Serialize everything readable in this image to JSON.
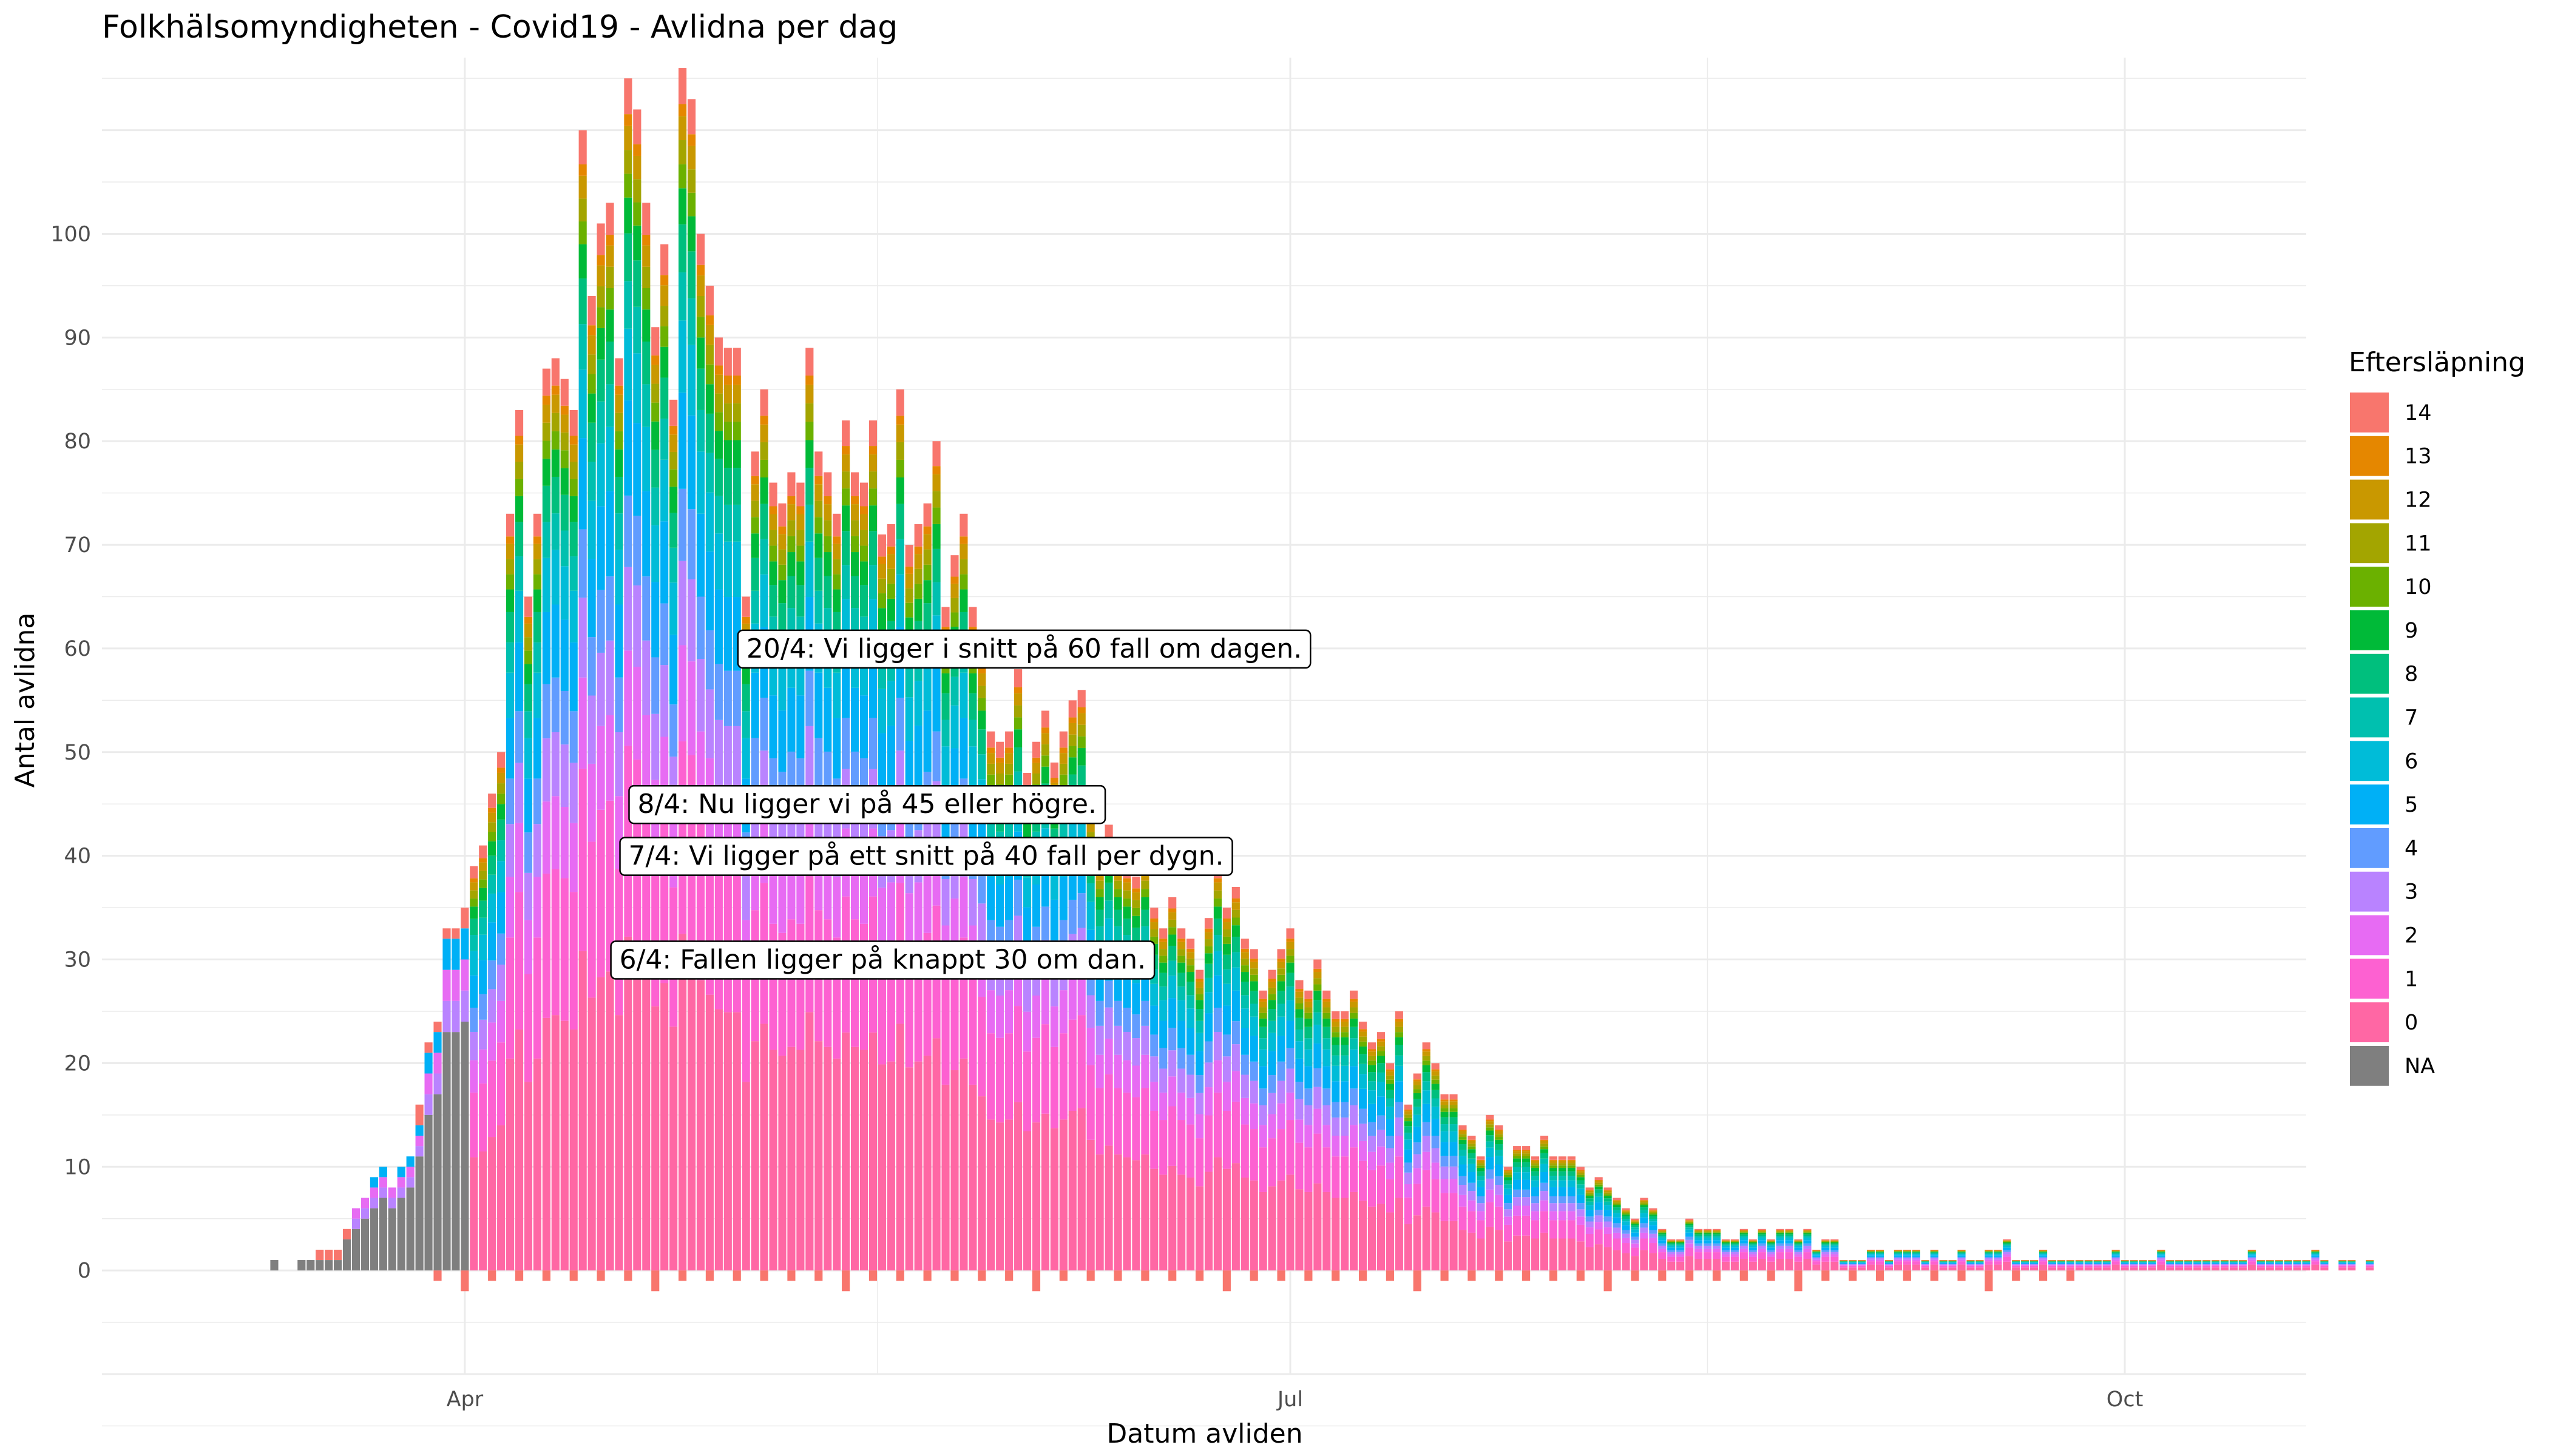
{
  "chart_data": {
    "type": "bar",
    "stacked": true,
    "title": "Folkhälsomyndigheten - Covid19 - Avlidna per dag",
    "xlabel": "Datum avliden",
    "ylabel": "Antal avlidna",
    "x_ticks": [
      "Apr",
      "Jul",
      "Oct"
    ],
    "x_tick_dates": [
      "2020-04-01",
      "2020-07-01",
      "2020-10-01"
    ],
    "x_range": [
      "2020-02-21",
      "2020-10-21"
    ],
    "y_ticks": [
      0,
      10,
      20,
      30,
      40,
      50,
      60,
      70,
      80,
      90,
      100
    ],
    "y_range": [
      -10,
      117
    ],
    "grid": true,
    "legend": {
      "title": "Eftersläpning",
      "position": "right",
      "entries": [
        "14",
        "13",
        "12",
        "11",
        "10",
        "9",
        "8",
        "7",
        "6",
        "5",
        "4",
        "3",
        "2",
        "1",
        "0",
        "NA"
      ],
      "colors": [
        "#F8766D",
        "#E58700",
        "#C99800",
        "#A3A500",
        "#6BB100",
        "#00BA38",
        "#00BF7D",
        "#00C0AF",
        "#00BCD8",
        "#00B0F6",
        "#619CFF",
        "#B983FF",
        "#E76BF3",
        "#FD61D1",
        "#FF67A4",
        "#7F7F7F"
      ]
    },
    "annotations": [
      {
        "date": "2020-04-20",
        "y": 60,
        "text": "20/4: Vi ligger i snitt på 60 fall om dagen."
      },
      {
        "date": "2020-04-08",
        "y": 45,
        "text": "8/4: Nu ligger vi på 45 eller högre."
      },
      {
        "date": "2020-04-07",
        "y": 40,
        "text": "7/4: Vi ligger på ett snitt på 40 fall per dygn."
      },
      {
        "date": "2020-04-06",
        "y": 30,
        "text": "6/4: Fallen ligger på knappt 30 om dan."
      }
    ],
    "start_date": "2020-03-11",
    "daily_totals": [
      1,
      0,
      0,
      1,
      1,
      2,
      2,
      2,
      4,
      6,
      7,
      9,
      10,
      8,
      10,
      11,
      16,
      22,
      24,
      33,
      33,
      35,
      39,
      41,
      46,
      50,
      73,
      83,
      65,
      73,
      87,
      88,
      86,
      83,
      110,
      94,
      101,
      103,
      88,
      115,
      112,
      103,
      91,
      99,
      84,
      116,
      113,
      100,
      95,
      90,
      89,
      89,
      65,
      79,
      85,
      76,
      74,
      77,
      76,
      89,
      79,
      77,
      73,
      82,
      77,
      76,
      82,
      71,
      72,
      85,
      70,
      72,
      74,
      80,
      64,
      69,
      73,
      64,
      60,
      52,
      51,
      52,
      58,
      48,
      51,
      54,
      49,
      52,
      55,
      56,
      45,
      40,
      43,
      40,
      39,
      38,
      40,
      35,
      33,
      36,
      33,
      32,
      29,
      34,
      39,
      35,
      37,
      32,
      31,
      27,
      29,
      31,
      33,
      28,
      27,
      30,
      27,
      25,
      25,
      27,
      24,
      22,
      23,
      20,
      25,
      16,
      19,
      22,
      20,
      17,
      17,
      14,
      13,
      11,
      15,
      14,
      10,
      12,
      12,
      11,
      13,
      11,
      11,
      11,
      10,
      8,
      9,
      8,
      7,
      6,
      5,
      7,
      6,
      4,
      3,
      3,
      5,
      4,
      4,
      4,
      3,
      3,
      4,
      3,
      4,
      3,
      4,
      4,
      3,
      4,
      2,
      3,
      3,
      1,
      1,
      1,
      2,
      2,
      1,
      2,
      2,
      2,
      1,
      2,
      1,
      1,
      2,
      1,
      1,
      2,
      2,
      3,
      1,
      1,
      1,
      2,
      1,
      1,
      1,
      1,
      1,
      1,
      1,
      2,
      1,
      1,
      1,
      1,
      2,
      1,
      1,
      1,
      1,
      1,
      1,
      1,
      1,
      1,
      2,
      1,
      1,
      1,
      1,
      1,
      1,
      2,
      1,
      0,
      1,
      1,
      0,
      1
    ]
  }
}
